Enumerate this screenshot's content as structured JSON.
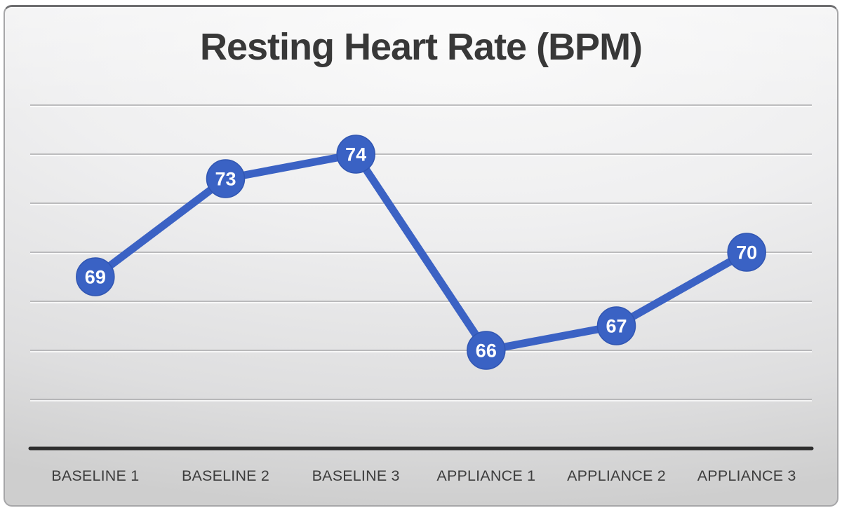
{
  "chart_data": {
    "type": "line",
    "title": "Resting Heart Rate (BPM)",
    "categories": [
      "BASELINE 1",
      "BASELINE 2",
      "BASELINE 3",
      "APPLIANCE 1",
      "APPLIANCE 2",
      "APPLIANCE 3"
    ],
    "values": [
      69,
      73,
      74,
      66,
      67,
      70
    ],
    "xlabel": "",
    "ylabel": "",
    "ylim": [
      62,
      77
    ],
    "gridlines": {
      "visible": true,
      "values": [
        64,
        66,
        68,
        70,
        72,
        74,
        76
      ]
    },
    "y_axis_tick_labels_visible": false,
    "legend": "none",
    "data_labels_position": "inside-marker",
    "colors": {
      "line": "#3B62C4",
      "marker_fill": "#3A62C4",
      "marker_edge": "#3156B2",
      "marker_label": "#FFFFFF",
      "gridline": "#ABABAD",
      "axis_line": "#2E2E2E",
      "category_label": "#3D3D3D",
      "title": "#383838"
    }
  }
}
